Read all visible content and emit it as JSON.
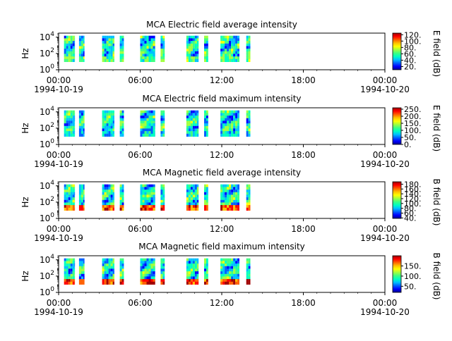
{
  "figure": {
    "background": "#ffffff"
  },
  "colormap": [
    "#00008f",
    "#0000ff",
    "#0060ff",
    "#00c0ff",
    "#00ffc0",
    "#40ff80",
    "#a0ff40",
    "#ffff00",
    "#ffc000",
    "#ff6000",
    "#ff0000",
    "#a00000"
  ],
  "chart_data": [
    {
      "type": "heatmap",
      "title": "MCA  Electric field average intensity",
      "ylabel": "Hz",
      "yscale": "log",
      "ylim": [
        1,
        31623
      ],
      "y_ticks": [
        {
          "exp": "0"
        },
        {
          "exp": "2"
        },
        {
          "exp": "4"
        }
      ],
      "x_ticks": [
        "00:00",
        "06:00",
        "12:00",
        "18:00",
        "00:00"
      ],
      "x_dates": [
        "1994-10-19",
        "",
        "",
        "",
        "1994-10-20"
      ],
      "xlim_hours": [
        0,
        24
      ],
      "colorbar": {
        "label": "E field (dB)",
        "range": [
          10,
          125
        ],
        "ticks": [
          "20.",
          "40.",
          "60.",
          "80.",
          "100.",
          "120."
        ]
      },
      "segments_hours": [
        [
          0.4,
          1.2
        ],
        [
          1.5,
          1.9
        ],
        [
          3.2,
          4.1
        ],
        [
          4.5,
          4.8
        ],
        [
          6.0,
          7.1
        ],
        [
          7.5,
          7.8
        ],
        [
          9.4,
          10.3
        ],
        [
          10.7,
          11.0
        ],
        [
          11.9,
          13.3
        ],
        [
          13.8,
          14.1
        ]
      ],
      "data_freq_range": [
        10,
        15000
      ],
      "low_freq_band_level": 0.45,
      "note": "spectrogram"
    },
    {
      "type": "heatmap",
      "title": "MCA  Electric field maximum intensity",
      "ylabel": "Hz",
      "yscale": "log",
      "ylim": [
        1,
        31623
      ],
      "y_ticks": [
        {
          "exp": "0"
        },
        {
          "exp": "2"
        },
        {
          "exp": "4"
        }
      ],
      "x_ticks": [
        "00:00",
        "06:00",
        "12:00",
        "18:00",
        "00:00"
      ],
      "x_dates": [
        "1994-10-19",
        "",
        "",
        "",
        "1994-10-20"
      ],
      "xlim_hours": [
        0,
        24
      ],
      "colorbar": {
        "label": "E field (dB)",
        "range": [
          0,
          260
        ],
        "ticks": [
          "0.",
          "50.",
          "100.",
          "150.",
          "200.",
          "250."
        ]
      },
      "segments_hours": [
        [
          0.4,
          1.2
        ],
        [
          1.5,
          1.9
        ],
        [
          3.2,
          4.1
        ],
        [
          4.5,
          4.8
        ],
        [
          6.0,
          7.1
        ],
        [
          7.5,
          7.8
        ],
        [
          9.4,
          10.3
        ],
        [
          10.7,
          11.0
        ],
        [
          11.9,
          13.3
        ],
        [
          13.8,
          14.1
        ]
      ],
      "data_freq_range": [
        10,
        15000
      ],
      "low_freq_band_level": 0.3
    },
    {
      "type": "heatmap",
      "title": "MCA  Magnetic field average intensity",
      "ylabel": "Hz",
      "yscale": "log",
      "ylim": [
        1,
        31623
      ],
      "y_ticks": [
        {
          "exp": "0"
        },
        {
          "exp": "2"
        },
        {
          "exp": "4"
        }
      ],
      "x_ticks": [
        "00:00",
        "06:00",
        "12:00",
        "18:00",
        "00:00"
      ],
      "x_dates": [
        "1994-10-19",
        "",
        "",
        "",
        "1994-10-20"
      ],
      "xlim_hours": [
        0,
        24
      ],
      "colorbar": {
        "label": "B field (dB)",
        "range": [
          38,
          190
        ],
        "ticks": [
          "40.",
          "60.",
          "80.",
          "100.",
          "120.",
          "140.",
          "160.",
          "180."
        ]
      },
      "segments_hours": [
        [
          0.4,
          1.2
        ],
        [
          1.5,
          1.9
        ],
        [
          3.2,
          4.1
        ],
        [
          4.5,
          4.8
        ],
        [
          6.0,
          7.1
        ],
        [
          7.5,
          7.8
        ],
        [
          9.4,
          10.3
        ],
        [
          10.7,
          11.0
        ],
        [
          11.9,
          13.3
        ],
        [
          13.8,
          14.1
        ]
      ],
      "data_freq_range": [
        10,
        15000
      ],
      "low_freq_band_level": 0.85
    },
    {
      "type": "heatmap",
      "title": "MCA  Magnetic field maximum intensity",
      "ylabel": "Hz",
      "yscale": "log",
      "ylim": [
        1,
        31623
      ],
      "y_ticks": [
        {
          "exp": "0"
        },
        {
          "exp": "2"
        },
        {
          "exp": "4"
        }
      ],
      "x_ticks": [
        "00:00",
        "06:00",
        "12:00",
        "18:00",
        "00:00"
      ],
      "x_dates": [
        "1994-10-19",
        "",
        "",
        "",
        "1994-10-20"
      ],
      "xlim_hours": [
        0,
        24
      ],
      "colorbar": {
        "label": "B field (dB)",
        "range": [
          20,
          200
        ],
        "ticks": [
          "50.",
          "100.",
          "150."
        ]
      },
      "segments_hours": [
        [
          0.4,
          1.2
        ],
        [
          1.5,
          1.9
        ],
        [
          3.2,
          4.1
        ],
        [
          4.5,
          4.8
        ],
        [
          6.0,
          7.1
        ],
        [
          7.5,
          7.8
        ],
        [
          9.4,
          10.3
        ],
        [
          10.7,
          11.0
        ],
        [
          11.9,
          13.3
        ],
        [
          13.8,
          14.1
        ]
      ],
      "data_freq_range": [
        10,
        15000
      ],
      "low_freq_band_level": 0.9
    }
  ]
}
